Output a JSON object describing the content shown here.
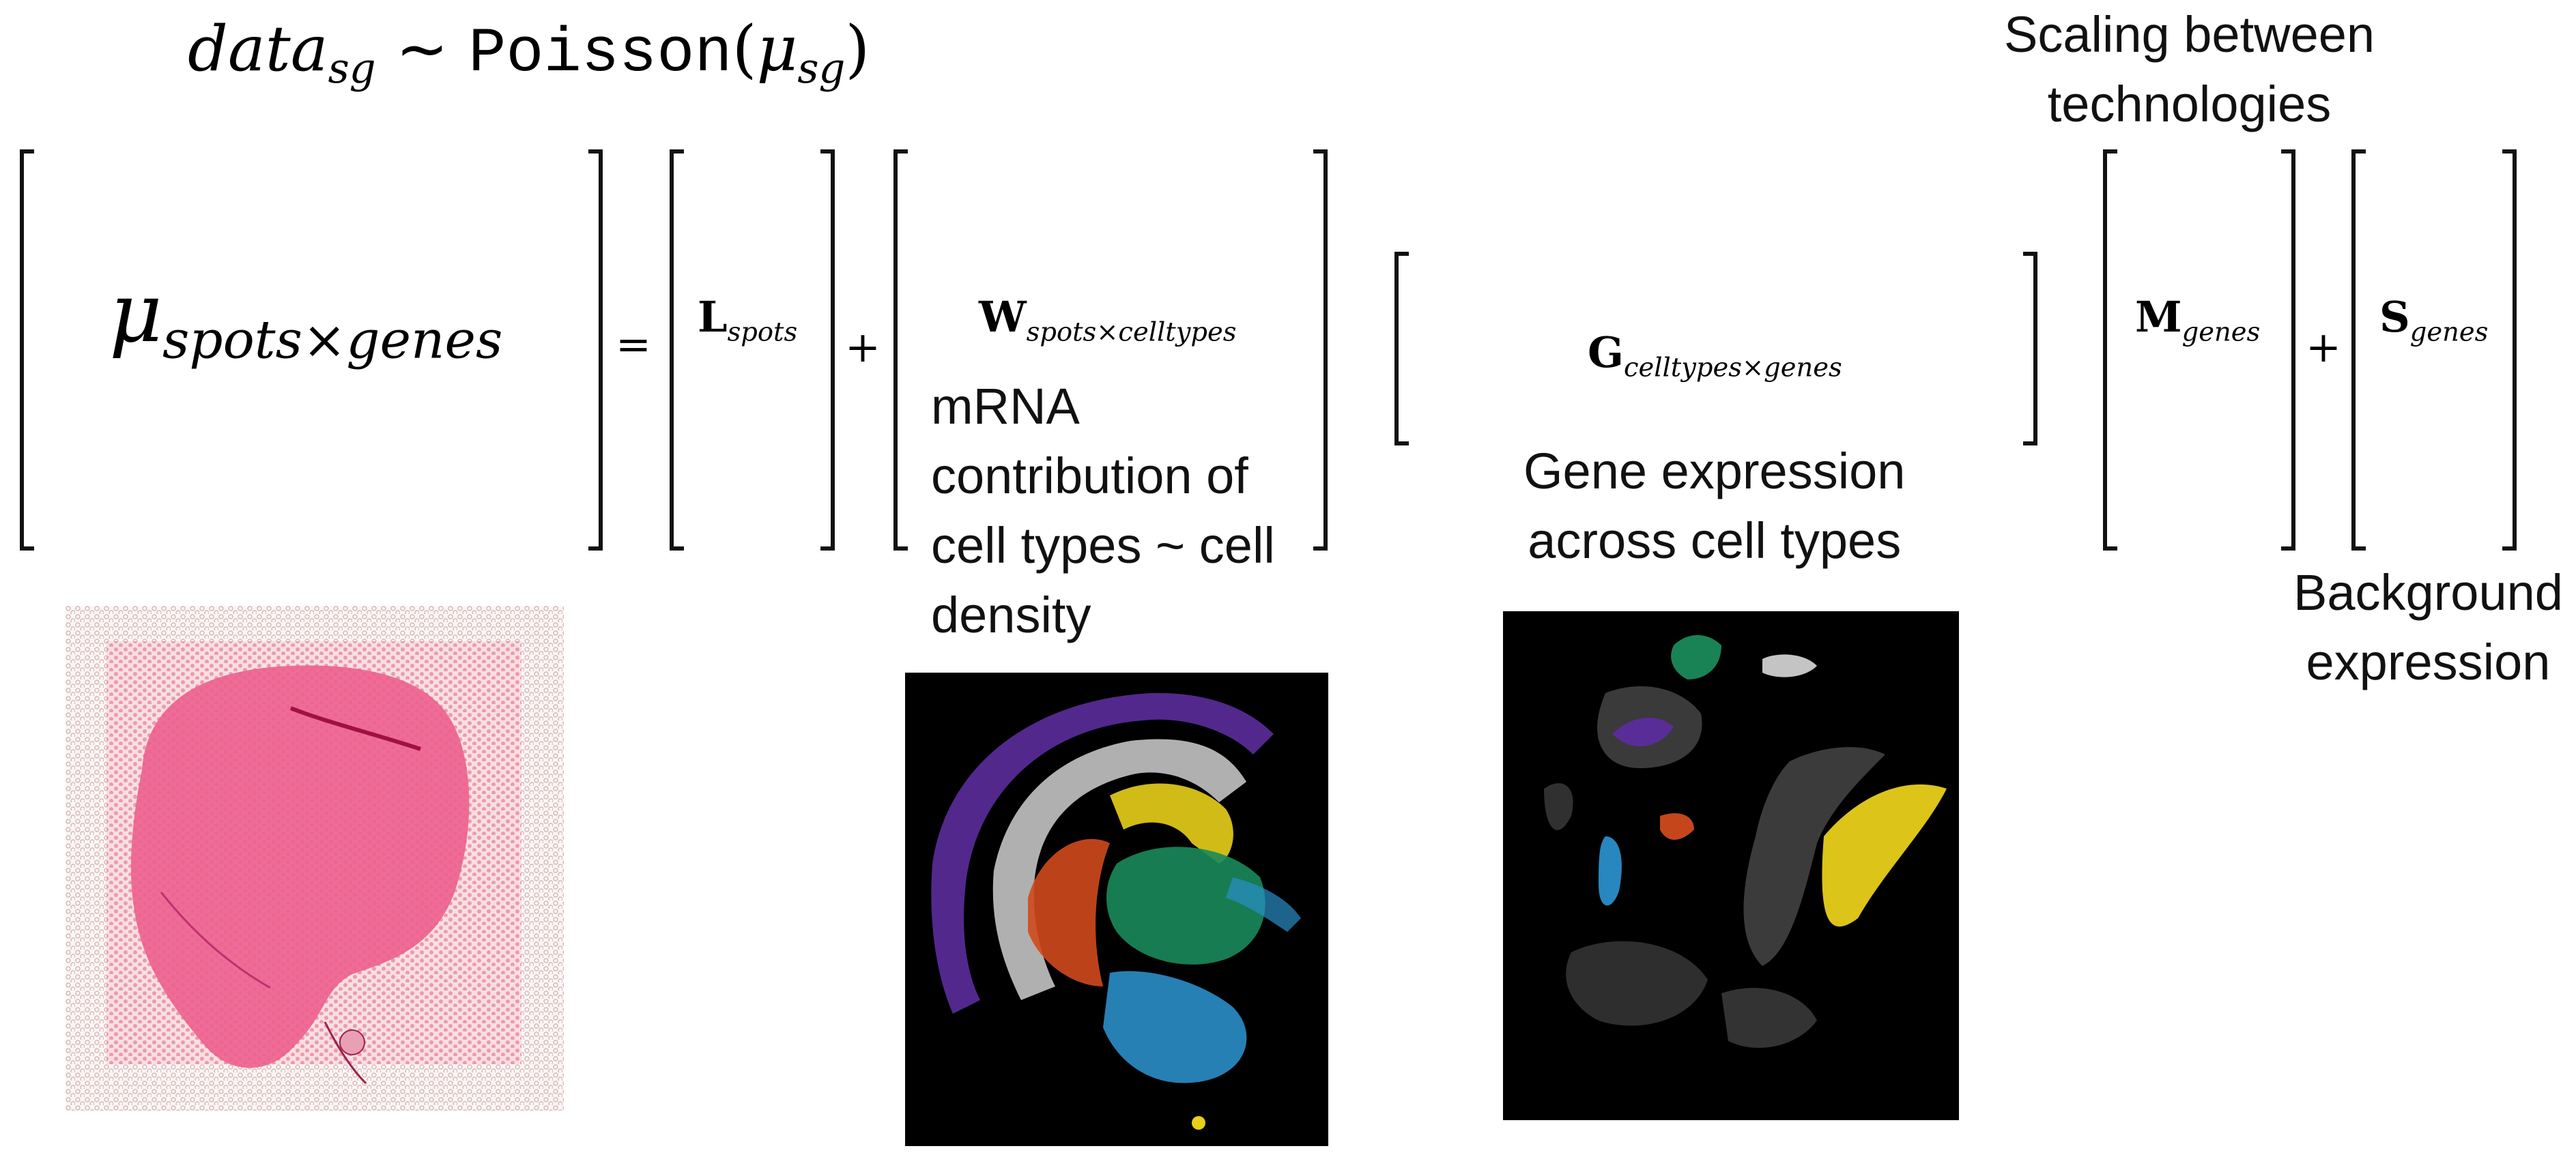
{
  "equation": {
    "lhs": "data",
    "lhs_sub": "sg",
    "tilde": "~",
    "dist": "Poisson",
    "open": "(",
    "mu": "μ",
    "mu_sub": "sg",
    "close": ")"
  },
  "matrix": {
    "mu_symbol": "μ",
    "mu_sub": "spots×genes",
    "equals": "=",
    "plus": "+",
    "L": "L",
    "L_sub": "spots",
    "W": "W",
    "W_sub": "spots×celltypes",
    "G": "G",
    "G_sub": "celltypes×genes",
    "M": "M",
    "M_sub": "genes",
    "S": "S",
    "S_sub": "genes"
  },
  "annotations": {
    "scaling": [
      "Scaling between",
      "technologies"
    ],
    "mrna": [
      "mRNA",
      "contribution of",
      "cell types ~ cell",
      "density"
    ],
    "gene_expression": [
      "Gene expression",
      "across cell types"
    ],
    "background": [
      "Background",
      "expression"
    ]
  },
  "colors": {
    "tissue_pink": "#ec5f8e",
    "spot_grid": "#c8b4b4",
    "dark_bg": "#000000",
    "purple": "#5b2c9c",
    "white_cluster": "#cfcfcf",
    "yellow": "#e8cf1a",
    "green": "#1a8a5a",
    "red_orange": "#d04a1c",
    "blue": "#2a8ec8"
  },
  "icons": {
    "tissue_image": "he-stained-tissue-image",
    "spot_map": "spatial-spot-cell-density-map",
    "single_cell_map": "single-cell-clusters-map"
  }
}
